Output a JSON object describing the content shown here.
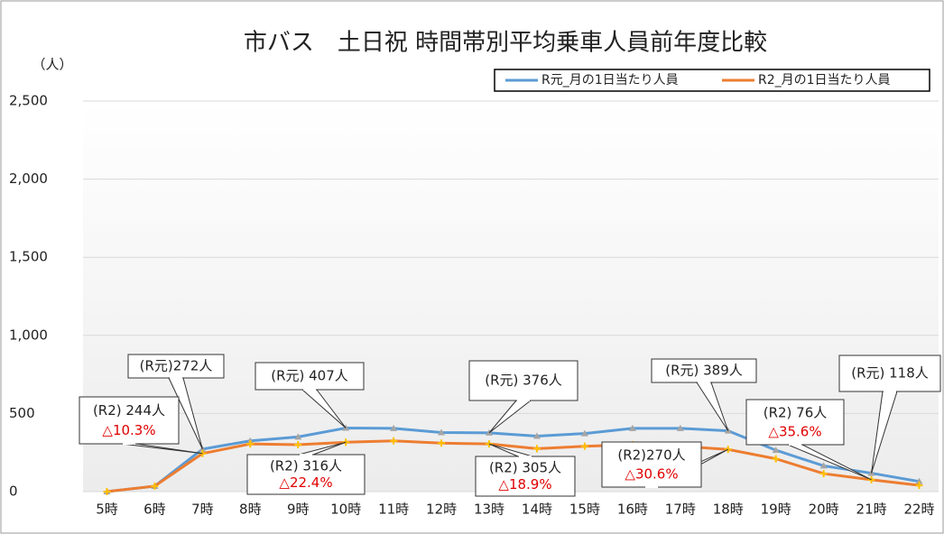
{
  "chart_data": {
    "type": "line",
    "title": "市バス　土日祝 時間帯別平均乗車人員前年度比較",
    "y_label": "（人）",
    "categories": [
      "5時",
      "6時",
      "7時",
      "8時",
      "9時",
      "10時",
      "11時",
      "12時",
      "13時",
      "14時",
      "15時",
      "16時",
      "17時",
      "18時",
      "19時",
      "20時",
      "21時",
      "22時"
    ],
    "series": [
      {
        "name": "R元_月の1日当たり人員",
        "color": "#5b9bd5",
        "values": [
          0,
          35,
          272,
          325,
          350,
          407,
          405,
          378,
          376,
          355,
          372,
          405,
          405,
          389,
          265,
          165,
          118,
          65
        ]
      },
      {
        "name": "R2_月の1日当たり人員",
        "color": "#ed7d31",
        "values": [
          0,
          35,
          244,
          305,
          300,
          316,
          325,
          310,
          305,
          275,
          290,
          300,
          290,
          270,
          210,
          115,
          76,
          40
        ]
      }
    ],
    "ylim": [
      0,
      2500
    ],
    "yticks": [
      0,
      500,
      {
        "value": 1000,
        "label": "1,000"
      },
      {
        "value": 1500,
        "label": "1,500"
      },
      {
        "value": 2000,
        "label": "2,000"
      },
      {
        "value": 2500,
        "label": "2,500"
      }
    ],
    "grid": true,
    "legend": "top-right",
    "annotations": [
      {
        "text": "(R元)272人"
      },
      {
        "text": "(R2) 244人",
        "change": "△10.3%"
      },
      {
        "text": "(R元) 407人"
      },
      {
        "text": "(R2) 316人",
        "change": "△22.4%"
      },
      {
        "text": "(R元) 376人"
      },
      {
        "text": "(R2) 305人",
        "change": "△18.9%"
      },
      {
        "text": "(R元) 389人"
      },
      {
        "text": "(R2)270人",
        "change": "△30.6%"
      },
      {
        "text": "(R2) 76人",
        "change": "△35.6%"
      },
      {
        "text": "(R元) 118人"
      }
    ]
  }
}
